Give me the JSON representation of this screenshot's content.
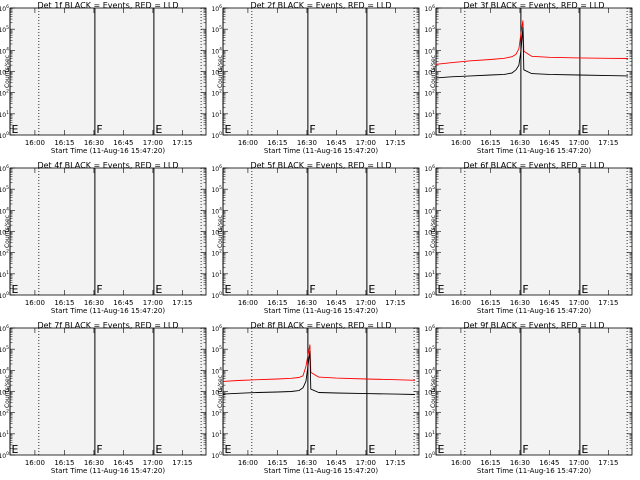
{
  "chart_data": [
    {
      "type": "line",
      "title": "Det 1f BLACK = Events, RED = LLD",
      "xlabel": "Start Time (11-Aug-16 15:47:20)",
      "ylabel": "Counts/sec",
      "xlim": [
        "15:47:20",
        "17:27:00"
      ],
      "ylim": [
        1,
        1000000
      ],
      "yscale": "log",
      "xticks": [
        "16:00",
        "16:15",
        "16:30",
        "16:45",
        "17:00",
        "17:15"
      ],
      "yticks": [
        "10^0",
        "10^1",
        "10^2",
        "10^3",
        "10^4",
        "10^5",
        "10^6"
      ],
      "markers": [
        {
          "time": "15:47:20",
          "label": "E",
          "style": "solid"
        },
        {
          "time": "16:02:00",
          "style": "dotted"
        },
        {
          "time": "16:30:30",
          "label": "F",
          "style": "solid"
        },
        {
          "time": "17:00:30",
          "label": "E",
          "style": "solid"
        },
        {
          "time": "17:24:30",
          "style": "dotted"
        }
      ],
      "series": []
    },
    {
      "type": "line",
      "title": "Det 2f BLACK = Events, RED = LLD",
      "xlabel": "Start Time (11-Aug-16 15:47:20)",
      "ylabel": "Counts/sec",
      "xlim": [
        "15:47:20",
        "17:27:00"
      ],
      "ylim": [
        1,
        1000000
      ],
      "yscale": "log",
      "xticks": [
        "16:00",
        "16:15",
        "16:30",
        "16:45",
        "17:00",
        "17:15"
      ],
      "yticks": [
        "10^0",
        "10^1",
        "10^2",
        "10^3",
        "10^4",
        "10^5",
        "10^6"
      ],
      "markers": [
        {
          "time": "15:47:20",
          "label": "E",
          "style": "solid"
        },
        {
          "time": "16:02:00",
          "style": "dotted"
        },
        {
          "time": "16:30:30",
          "label": "F",
          "style": "solid"
        },
        {
          "time": "17:00:30",
          "label": "E",
          "style": "solid"
        },
        {
          "time": "17:24:30",
          "style": "dotted"
        }
      ],
      "series": []
    },
    {
      "type": "line",
      "title": "Det 3f BLACK = Events, RED = LLD",
      "xlabel": "Start Time (11-Aug-16 15:47:20)",
      "ylabel": "Counts/sec",
      "xlim": [
        "15:47:20",
        "17:27:00"
      ],
      "ylim": [
        1,
        1000000
      ],
      "yscale": "log",
      "xticks": [
        "16:00",
        "16:15",
        "16:30",
        "16:45",
        "17:00",
        "17:15"
      ],
      "yticks": [
        "10^0",
        "10^1",
        "10^2",
        "10^3",
        "10^4",
        "10^5",
        "10^6"
      ],
      "markers": [
        {
          "time": "15:47:20",
          "label": "E",
          "style": "solid"
        },
        {
          "time": "16:02:00",
          "style": "dotted"
        },
        {
          "time": "16:30:30",
          "label": "F",
          "style": "solid"
        },
        {
          "time": "17:00:30",
          "label": "E",
          "style": "solid"
        },
        {
          "time": "17:24:30",
          "style": "dotted"
        }
      ],
      "series": [
        {
          "color": "#ff0000",
          "x": [
            "15:47:20",
            "15:55",
            "16:05",
            "16:15",
            "16:22",
            "16:26",
            "16:28",
            "16:29:30",
            "16:30:30",
            "16:31:30",
            "16:32",
            "16:36",
            "16:45",
            "17:00",
            "17:15",
            "17:25"
          ],
          "y": [
            2200,
            2600,
            3200,
            3700,
            4200,
            5000,
            6500,
            12000,
            60000,
            250000,
            9000,
            5200,
            4700,
            4400,
            4200,
            4100
          ]
        },
        {
          "color": "#000000",
          "x": [
            "15:47:20",
            "15:55",
            "16:05",
            "16:15",
            "16:22",
            "16:26",
            "16:28",
            "16:29:30",
            "16:30:30",
            "16:31:30",
            "16:32",
            "16:36",
            "16:45",
            "17:00",
            "17:15",
            "17:25"
          ],
          "y": [
            500,
            560,
            620,
            680,
            730,
            850,
            1200,
            2000,
            9000,
            120000,
            1200,
            800,
            730,
            680,
            640,
            620
          ]
        }
      ]
    },
    {
      "type": "line",
      "title": "Det 4f BLACK = Events, RED = LLD",
      "xlabel": "Start Time (11-Aug-16 15:47:20)",
      "ylabel": "Counts/sec",
      "xlim": [
        "15:47:20",
        "17:27:00"
      ],
      "ylim": [
        1,
        1000000
      ],
      "yscale": "log",
      "xticks": [
        "16:00",
        "16:15",
        "16:30",
        "16:45",
        "17:00",
        "17:15"
      ],
      "yticks": [
        "10^0",
        "10^1",
        "10^2",
        "10^3",
        "10^4",
        "10^5",
        "10^6"
      ],
      "markers": [
        {
          "time": "15:47:20",
          "label": "E",
          "style": "solid"
        },
        {
          "time": "16:02:00",
          "style": "dotted"
        },
        {
          "time": "16:30:30",
          "label": "F",
          "style": "solid"
        },
        {
          "time": "17:00:30",
          "label": "E",
          "style": "solid"
        },
        {
          "time": "17:24:30",
          "style": "dotted"
        }
      ],
      "series": []
    },
    {
      "type": "line",
      "title": "Det 5f BLACK = Events, RED = LLD",
      "xlabel": "Start Time (11-Aug-16 15:47:20)",
      "ylabel": "Counts/sec",
      "xlim": [
        "15:47:20",
        "17:27:00"
      ],
      "ylim": [
        1,
        1000000
      ],
      "yscale": "log",
      "xticks": [
        "16:00",
        "16:15",
        "16:30",
        "16:45",
        "17:00",
        "17:15"
      ],
      "yticks": [
        "10^0",
        "10^1",
        "10^2",
        "10^3",
        "10^4",
        "10^5",
        "10^6"
      ],
      "markers": [
        {
          "time": "15:47:20",
          "label": "E",
          "style": "solid"
        },
        {
          "time": "16:02:00",
          "style": "dotted"
        },
        {
          "time": "16:30:30",
          "label": "F",
          "style": "solid"
        },
        {
          "time": "17:00:30",
          "label": "E",
          "style": "solid"
        },
        {
          "time": "17:24:30",
          "style": "dotted"
        }
      ],
      "series": []
    },
    {
      "type": "line",
      "title": "Det 6f BLACK = Events, RED = LLD",
      "xlabel": "Start Time (11-Aug-16 15:47:20)",
      "ylabel": "Counts/sec",
      "xlim": [
        "15:47:20",
        "17:27:00"
      ],
      "ylim": [
        1,
        1000000
      ],
      "yscale": "log",
      "xticks": [
        "16:00",
        "16:15",
        "16:30",
        "16:45",
        "17:00",
        "17:15"
      ],
      "yticks": [
        "10^0",
        "10^1",
        "10^2",
        "10^3",
        "10^4",
        "10^5",
        "10^6"
      ],
      "markers": [
        {
          "time": "15:47:20",
          "label": "E",
          "style": "solid"
        },
        {
          "time": "16:02:00",
          "style": "dotted"
        },
        {
          "time": "16:30:30",
          "label": "F",
          "style": "solid"
        },
        {
          "time": "17:00:30",
          "label": "E",
          "style": "solid"
        },
        {
          "time": "17:24:30",
          "style": "dotted"
        }
      ],
      "series": []
    },
    {
      "type": "line",
      "title": "Det 7f BLACK = Events, RED = LLD",
      "xlabel": "Start Time (11-Aug-16 15:47:20)",
      "ylabel": "Counts/sec",
      "xlim": [
        "15:47:20",
        "17:27:00"
      ],
      "ylim": [
        1,
        1000000
      ],
      "yscale": "log",
      "xticks": [
        "16:00",
        "16:15",
        "16:30",
        "16:45",
        "17:00",
        "17:15"
      ],
      "yticks": [
        "10^0",
        "10^1",
        "10^2",
        "10^3",
        "10^4",
        "10^5",
        "10^6"
      ],
      "markers": [
        {
          "time": "15:47:20",
          "label": "E",
          "style": "solid"
        },
        {
          "time": "16:02:00",
          "style": "dotted"
        },
        {
          "time": "16:30:30",
          "label": "F",
          "style": "solid"
        },
        {
          "time": "17:00:30",
          "label": "E",
          "style": "solid"
        },
        {
          "time": "17:24:30",
          "style": "dotted"
        }
      ],
      "series": []
    },
    {
      "type": "line",
      "title": "Det 8f BLACK = Events, RED = LLD",
      "xlabel": "Start Time (11-Aug-16 15:47:20)",
      "ylabel": "Counts/sec",
      "xlim": [
        "15:47:20",
        "17:27:00"
      ],
      "ylim": [
        1,
        1000000
      ],
      "yscale": "log",
      "xticks": [
        "16:00",
        "16:15",
        "16:30",
        "16:45",
        "17:00",
        "17:15"
      ],
      "yticks": [
        "10^0",
        "10^1",
        "10^2",
        "10^3",
        "10^4",
        "10^5",
        "10^6"
      ],
      "markers": [
        {
          "time": "15:47:20",
          "label": "E",
          "style": "solid"
        },
        {
          "time": "16:02:00",
          "style": "dotted"
        },
        {
          "time": "16:30:30",
          "label": "F",
          "style": "solid"
        },
        {
          "time": "17:00:30",
          "label": "E",
          "style": "solid"
        },
        {
          "time": "17:24:30",
          "style": "dotted"
        }
      ],
      "series": [
        {
          "color": "#ff0000",
          "x": [
            "15:47:20",
            "15:55",
            "16:05",
            "16:15",
            "16:22",
            "16:26",
            "16:28",
            "16:29:30",
            "16:30:30",
            "16:31:30",
            "16:32",
            "16:36",
            "16:45",
            "17:00",
            "17:15",
            "17:25"
          ],
          "y": [
            3000,
            3300,
            3600,
            3900,
            4200,
            4600,
            5500,
            15000,
            50000,
            160000,
            8000,
            4800,
            4300,
            3900,
            3600,
            3400
          ]
        },
        {
          "color": "#000000",
          "x": [
            "15:47:20",
            "15:55",
            "16:05",
            "16:15",
            "16:22",
            "16:26",
            "16:28",
            "16:29:30",
            "16:30:30",
            "16:31:30",
            "16:32",
            "16:36",
            "16:45",
            "17:00",
            "17:15",
            "17:25"
          ],
          "y": [
            750,
            820,
            900,
            950,
            1000,
            1100,
            1500,
            3000,
            15000,
            80000,
            1300,
            900,
            850,
            800,
            750,
            720
          ]
        }
      ]
    },
    {
      "type": "line",
      "title": "Det 9f BLACK = Events, RED = LLD",
      "xlabel": "Start Time (11-Aug-16 15:47:20)",
      "ylabel": "Counts/sec",
      "xlim": [
        "15:47:20",
        "17:27:00"
      ],
      "ylim": [
        1,
        1000000
      ],
      "yscale": "log",
      "xticks": [
        "16:00",
        "16:15",
        "16:30",
        "16:45",
        "17:00",
        "17:15"
      ],
      "yticks": [
        "10^0",
        "10^1",
        "10^2",
        "10^3",
        "10^4",
        "10^5",
        "10^6"
      ],
      "markers": [
        {
          "time": "15:47:20",
          "label": "E",
          "style": "solid"
        },
        {
          "time": "16:02:00",
          "style": "dotted"
        },
        {
          "time": "16:30:30",
          "label": "F",
          "style": "solid"
        },
        {
          "time": "17:00:30",
          "label": "E",
          "style": "solid"
        },
        {
          "time": "17:24:30",
          "style": "dotted"
        }
      ],
      "series": []
    }
  ]
}
